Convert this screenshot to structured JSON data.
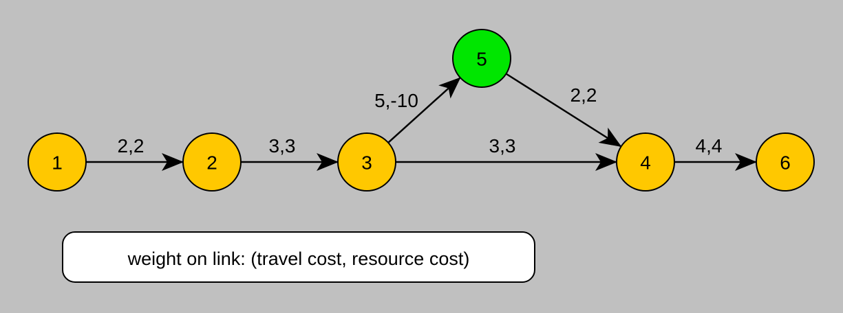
{
  "colors": {
    "background": "#c0c0c0",
    "node_default": "#ffc800",
    "node_highlight": "#00e600",
    "edge": "#000000"
  },
  "nodes": [
    {
      "id": "1",
      "label": "1",
      "color": "#ffc800"
    },
    {
      "id": "2",
      "label": "2",
      "color": "#ffc800"
    },
    {
      "id": "3",
      "label": "3",
      "color": "#ffc800"
    },
    {
      "id": "5",
      "label": "5",
      "color": "#00e600"
    },
    {
      "id": "4",
      "label": "4",
      "color": "#ffc800"
    },
    {
      "id": "6",
      "label": "6",
      "color": "#ffc800"
    }
  ],
  "edges": [
    {
      "from": "1",
      "to": "2",
      "label": "2,2"
    },
    {
      "from": "2",
      "to": "3",
      "label": "3,3"
    },
    {
      "from": "3",
      "to": "5",
      "label": "5,-10"
    },
    {
      "from": "3",
      "to": "4",
      "label": "3,3"
    },
    {
      "from": "5",
      "to": "4",
      "label": "2,2"
    },
    {
      "from": "4",
      "to": "6",
      "label": "4,4"
    }
  ],
  "legend": {
    "text": "weight on link: (travel cost, resource cost)"
  }
}
